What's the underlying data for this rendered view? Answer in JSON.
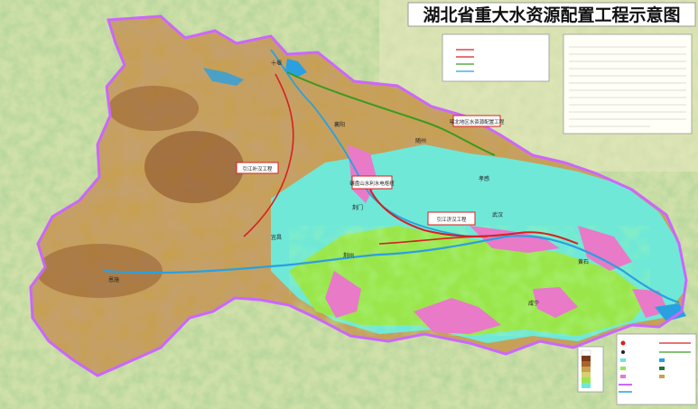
{
  "map": {
    "title": "湖北省重大水资源配置工程示意图",
    "labels": {
      "project_1": "鄂北地区水资源配置工程",
      "project_2": "引江补汉工程",
      "project_3": "碾盘山水利水电枢纽",
      "project_4": "引江济汉工程",
      "city_1": "十堰",
      "city_2": "襄阳",
      "city_3": "随州",
      "city_4": "孝感",
      "city_5": "荆门",
      "city_6": "武汉",
      "city_7": "荆州",
      "city_8": "宜昌",
      "city_9": "恩施",
      "city_10": "黄石",
      "city_11": "咸宁"
    },
    "colors": {
      "province_border": "#cc66ff",
      "canal_red": "#d62020",
      "canal_green": "#3a9a20",
      "water": "#2aa0e0",
      "plain_cyan": "#6fe8d8",
      "plain_green": "#9ae64a",
      "lake_pink": "#e87ac8",
      "mountain_dark": "#8a4a22",
      "hill": "#c8a050"
    }
  }
}
